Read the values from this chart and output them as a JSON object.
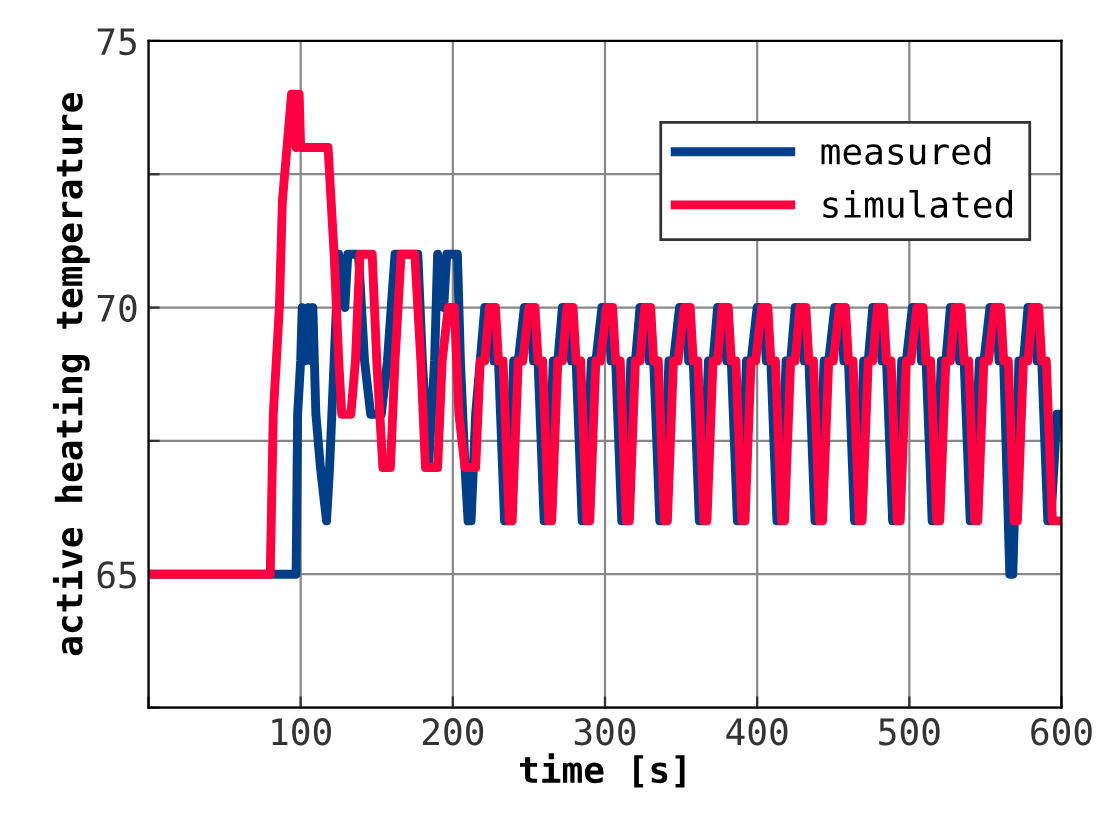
{
  "chart_data": {
    "type": "line",
    "xlabel": "time [s]",
    "ylabel": "active heating temperature",
    "xlim": [
      0,
      600
    ],
    "ylim": [
      62.5,
      75
    ],
    "xticks": [
      {
        "value": 0,
        "label": null
      },
      100,
      200,
      300,
      400,
      500,
      600
    ],
    "yticks": [
      {
        "value": 62.5,
        "label": null
      },
      65,
      {
        "value": 67.5,
        "label": null
      },
      70,
      {
        "value": 72.5,
        "label": null
      },
      75
    ],
    "grid": true,
    "legend": "top right",
    "line_style": "solid",
    "marker": "none",
    "series": [
      {
        "name": "measured",
        "color": "#003f87",
        "x": [
          0,
          97,
          98,
          100,
          101,
          103,
          105,
          107,
          108,
          110,
          113,
          117,
          119,
          122,
          125,
          129,
          131,
          138,
          142,
          146,
          153,
          157,
          162,
          177,
          180,
          184,
          188,
          190,
          194,
          196,
          203,
          205,
          208,
          210,
          212,
          215,
          218,
          221,
          225,
          227,
          230,
          234,
          236,
          240,
          243,
          247,
          251,
          253,
          256,
          260,
          262,
          266,
          269,
          272,
          276,
          278,
          281,
          285,
          287,
          291,
          294,
          298,
          302,
          304,
          307,
          311,
          313,
          317,
          320,
          323,
          327,
          329,
          332,
          336,
          338,
          342,
          345,
          349,
          353,
          355,
          358,
          362,
          364,
          368,
          371,
          374,
          378,
          380,
          383,
          387,
          389,
          393,
          396,
          400,
          404,
          406,
          409,
          413,
          415,
          419,
          422,
          425,
          429,
          431,
          434,
          438,
          440,
          444,
          447,
          451,
          455,
          457,
          460,
          464,
          466,
          470,
          473,
          476,
          480,
          482,
          485,
          489,
          491,
          495,
          498,
          502,
          506,
          508,
          511,
          515,
          517,
          521,
          524,
          527,
          531,
          533,
          536,
          540,
          542,
          546,
          549,
          553,
          557,
          559,
          562,
          566,
          568,
          572,
          575,
          578,
          582,
          584,
          587,
          591,
          593,
          597,
          600
        ],
        "values": [
          65,
          65,
          68,
          69,
          70,
          69,
          70,
          69,
          70,
          68,
          67,
          66,
          67,
          69,
          71,
          70,
          71,
          71,
          69,
          68,
          68,
          69,
          71,
          71,
          69,
          67,
          69,
          71,
          70,
          71,
          71,
          69,
          67,
          66,
          66,
          68,
          69,
          70,
          70,
          69,
          69,
          66,
          66,
          69,
          69,
          70,
          70,
          69,
          69,
          66,
          66,
          69,
          69,
          70,
          70,
          69,
          69,
          66,
          66,
          69,
          69,
          70,
          70,
          69,
          69,
          66,
          66,
          69,
          69,
          70,
          70,
          69,
          69,
          66,
          66,
          69,
          69,
          70,
          70,
          69,
          69,
          66,
          66,
          69,
          69,
          70,
          70,
          69,
          69,
          66,
          66,
          69,
          69,
          70,
          70,
          69,
          69,
          66,
          66,
          69,
          69,
          70,
          70,
          69,
          69,
          66,
          66,
          69,
          69,
          70,
          70,
          69,
          69,
          66,
          66,
          69,
          69,
          70,
          70,
          69,
          69,
          66,
          66,
          69,
          69,
          70,
          70,
          69,
          69,
          66,
          66,
          69,
          69,
          70,
          70,
          69,
          69,
          66,
          66,
          69,
          69,
          70,
          70,
          69,
          69,
          65,
          65,
          69,
          69,
          70,
          70,
          69,
          69,
          66,
          66,
          68,
          68
        ]
      },
      {
        "name": "simulated",
        "color": "#ff0040",
        "x": [
          0,
          80,
          82,
          84,
          86,
          88,
          91,
          94,
          96,
          97,
          99,
          100,
          118,
          120,
          122,
          125,
          127,
          133,
          136,
          139,
          147,
          150,
          154,
          159,
          162,
          166,
          175,
          179,
          182,
          190,
          193,
          197,
          201,
          204,
          208,
          215,
          218,
          221,
          224,
          228,
          230,
          233,
          237,
          239,
          243,
          246,
          250,
          254,
          256,
          259,
          263,
          265,
          269,
          272,
          275,
          279,
          281,
          284,
          288,
          290,
          294,
          297,
          301,
          305,
          307,
          310,
          314,
          316,
          320,
          323,
          326,
          330,
          332,
          335,
          339,
          341,
          345,
          348,
          352,
          356,
          358,
          361,
          365,
          367,
          371,
          374,
          377,
          381,
          383,
          386,
          390,
          392,
          396,
          399,
          403,
          407,
          409,
          412,
          416,
          418,
          422,
          425,
          428,
          432,
          434,
          437,
          441,
          443,
          447,
          450,
          454,
          458,
          460,
          463,
          467,
          469,
          473,
          476,
          479,
          483,
          485,
          488,
          492,
          494,
          498,
          501,
          505,
          509,
          511,
          514,
          518,
          520,
          524,
          527,
          530,
          534,
          536,
          539,
          543,
          545,
          549,
          552,
          556,
          560,
          562,
          565,
          569,
          571,
          575,
          578,
          581,
          585,
          587,
          590,
          594,
          596,
          600
        ],
        "values": [
          65,
          65,
          68,
          69,
          70,
          72,
          73,
          74,
          74,
          73,
          74,
          73,
          73,
          72,
          71,
          69,
          68,
          68,
          69,
          71,
          71,
          69,
          67,
          67,
          69,
          71,
          71,
          69,
          67,
          67,
          69,
          70,
          70,
          68,
          67,
          67,
          69,
          69,
          70,
          70,
          69,
          69,
          66,
          66,
          69,
          69,
          70,
          70,
          69,
          69,
          66,
          66,
          69,
          69,
          70,
          70,
          69,
          69,
          66,
          66,
          69,
          69,
          70,
          70,
          69,
          69,
          66,
          66,
          69,
          69,
          70,
          70,
          69,
          69,
          66,
          66,
          69,
          69,
          70,
          70,
          69,
          69,
          66,
          66,
          69,
          69,
          70,
          70,
          69,
          69,
          66,
          66,
          69,
          69,
          70,
          70,
          69,
          69,
          66,
          66,
          69,
          69,
          70,
          70,
          69,
          69,
          66,
          66,
          69,
          69,
          70,
          70,
          69,
          69,
          66,
          66,
          69,
          69,
          70,
          70,
          69,
          69,
          66,
          66,
          69,
          69,
          70,
          70,
          69,
          69,
          66,
          66,
          69,
          69,
          70,
          70,
          69,
          69,
          66,
          66,
          69,
          69,
          70,
          70,
          69,
          69,
          66,
          66,
          69,
          69,
          70,
          70,
          69,
          69,
          66,
          66,
          66
        ]
      }
    ]
  }
}
